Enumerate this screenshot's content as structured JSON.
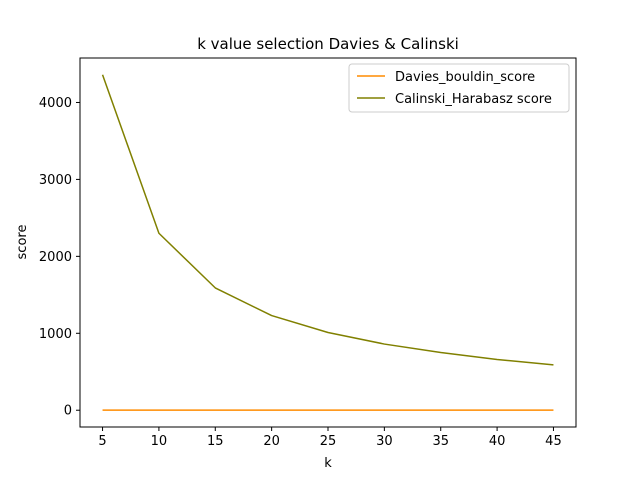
{
  "chart_data": {
    "type": "line",
    "title": "k value selection Davies & Calinski",
    "xlabel": "k",
    "ylabel": "score",
    "x": [
      5,
      10,
      15,
      20,
      25,
      30,
      35,
      40,
      45
    ],
    "series": [
      {
        "name": "Davies_bouldin_score",
        "color": "#ff8c00",
        "values": [
          1.4,
          1.3,
          1.4,
          1.5,
          1.5,
          1.6,
          1.6,
          1.7,
          1.7
        ]
      },
      {
        "name": "Calinski_Harabasz score",
        "color": "#808000",
        "values": [
          4360,
          2300,
          1590,
          1230,
          1010,
          860,
          750,
          660,
          590
        ]
      }
    ],
    "xticks": [
      5,
      10,
      15,
      20,
      25,
      30,
      35,
      40,
      45
    ],
    "yticks": [
      0,
      1000,
      2000,
      3000,
      4000
    ],
    "xlim": [
      3,
      47
    ],
    "ylim": [
      -218,
      4578
    ],
    "grid": false,
    "legend_position": "top-right"
  }
}
